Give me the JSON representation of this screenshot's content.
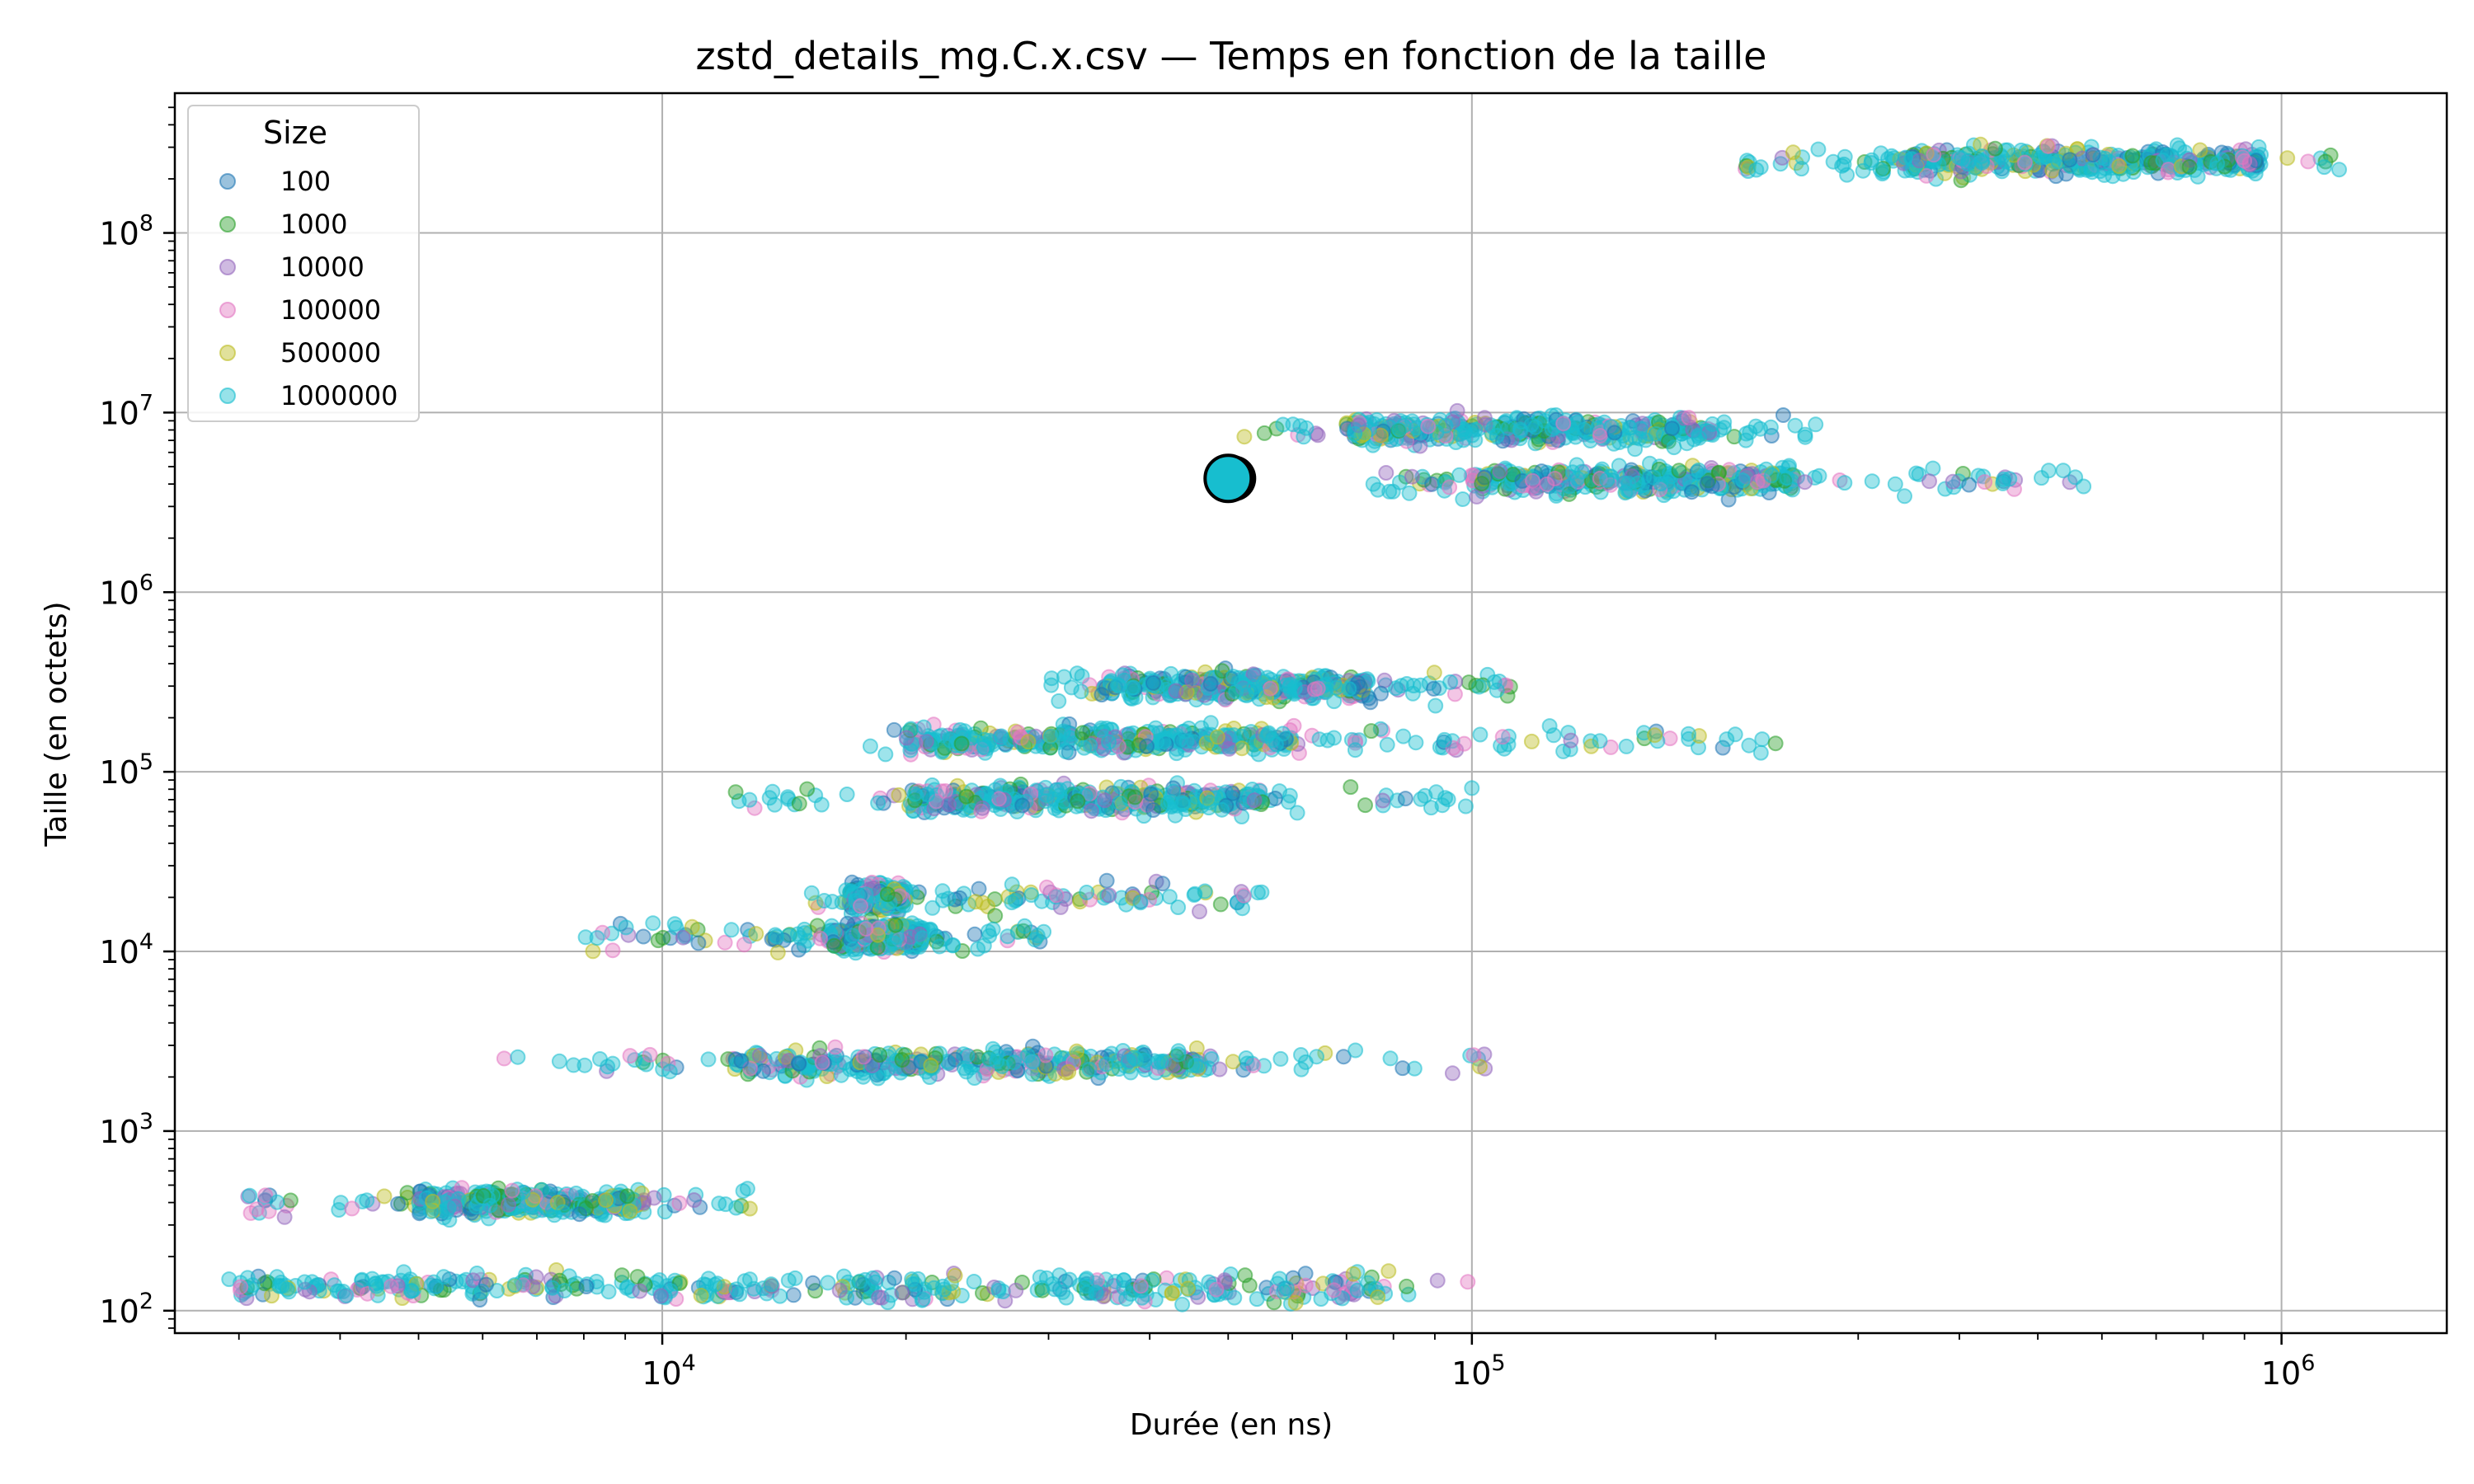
{
  "chart_data": {
    "type": "scatter",
    "title": "zstd_details_mg.C.x.csv — Temps en fonction de la taille",
    "xlabel": "Durée (en ns)",
    "ylabel": "Taille (en octets)",
    "xscale": "log",
    "yscale": "log",
    "xlim": [
      2500,
      1600000
    ],
    "ylim": [
      75,
      600000000
    ],
    "x_ticks": [
      {
        "value": 10000,
        "base": "10",
        "exp": "4"
      },
      {
        "value": 100000,
        "base": "10",
        "exp": "5"
      },
      {
        "value": 1000000,
        "base": "10",
        "exp": "6"
      }
    ],
    "y_ticks": [
      {
        "value": 100,
        "base": "10",
        "exp": "2"
      },
      {
        "value": 1000,
        "base": "10",
        "exp": "3"
      },
      {
        "value": 10000,
        "base": "10",
        "exp": "4"
      },
      {
        "value": 100000,
        "base": "10",
        "exp": "5"
      },
      {
        "value": 1000000,
        "base": "10",
        "exp": "6"
      },
      {
        "value": 10000000,
        "base": "10",
        "exp": "7"
      },
      {
        "value": 100000000,
        "base": "10",
        "exp": "8"
      }
    ],
    "grid": true,
    "legend": {
      "title": "Size",
      "placement": "top-left"
    },
    "series": [
      {
        "name": "100",
        "color": "#1f77b4"
      },
      {
        "name": "1000",
        "color": "#2ca02c"
      },
      {
        "name": "10000",
        "color": "#9467bd"
      },
      {
        "name": "100000",
        "color": "#e377c2"
      },
      {
        "name": "500000",
        "color": "#bcbd22"
      },
      {
        "name": "1000000",
        "color": "#17becf"
      }
    ],
    "clusters": [
      {
        "size": 135,
        "x_range": [
          2900,
          100000
        ],
        "dense_range": [
          3000,
          80000
        ]
      },
      {
        "size": 400,
        "x_range": [
          3000,
          13000
        ],
        "dense_range": [
          5000,
          9500
        ]
      },
      {
        "size": 2400,
        "x_range": [
          6200,
          105000
        ],
        "dense_range": [
          12000,
          48000
        ]
      },
      {
        "size": 20000,
        "x_range": [
          15000,
          55000
        ],
        "dense_range": [
          17000,
          20000
        ]
      },
      {
        "size": 12000,
        "x_range": [
          8000,
          30000
        ],
        "dense_range": [
          16000,
          21000
        ]
      },
      {
        "size": 70000,
        "x_range": [
          12000,
          100000
        ],
        "dense_range": [
          20000,
          55000
        ]
      },
      {
        "size": 150000,
        "x_range": [
          18000,
          240000
        ],
        "dense_range": [
          20000,
          60000
        ]
      },
      {
        "size": 300000,
        "x_range": [
          30000,
          120000
        ],
        "dense_range": [
          35000,
          75000
        ]
      },
      {
        "size": 4200000,
        "x_range": [
          75000,
          580000
        ],
        "dense_range": [
          100000,
          250000
        ]
      },
      {
        "size": 8000000,
        "x_range": [
          52000,
          270000
        ],
        "dense_range": [
          70000,
          200000
        ]
      },
      {
        "size": 250000000,
        "x_range": [
          210000,
          1200000
        ],
        "dense_range": [
          320000,
          950000
        ]
      }
    ],
    "highlight_point": {
      "x": 50000,
      "y": 4300000,
      "series": "1000000"
    }
  }
}
